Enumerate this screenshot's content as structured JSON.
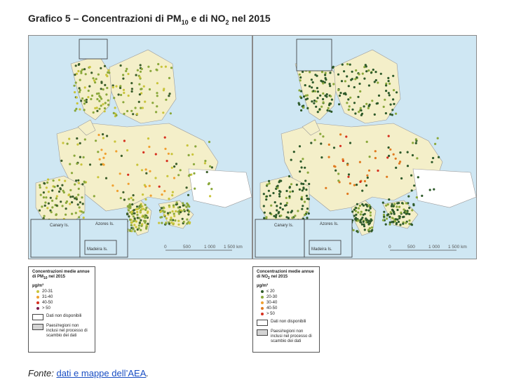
{
  "title": {
    "prefix": "Grafico 5 – Concentrazioni di PM",
    "pm_sub": "10",
    "mid": " e di NO",
    "no_sub": "2",
    "suffix": " nel 2015"
  },
  "maps": [
    {
      "inset_labels": [
        "Canary Is.",
        "Azores Is.",
        "Madeira Is."
      ],
      "scale": [
        "0",
        "500",
        "1 000",
        "1 500 km"
      ],
      "palette": [
        "#8aa83b",
        "#c9c43a",
        "#f0a030",
        "#d6301f",
        "#3b5e2a"
      ]
    },
    {
      "inset_labels": [
        "Canary Is.",
        "Azores Is.",
        "Madeira Is."
      ],
      "scale": [
        "0",
        "500",
        "1 000",
        "1 500 km"
      ],
      "palette": [
        "#2e5a2a",
        "#8aa83b",
        "#f0a030",
        "#e07a20",
        "#d6301f"
      ]
    }
  ],
  "legend_pm": {
    "title": "Concentrazioni medie annue di PM",
    "title_sub": "10",
    "title_suffix": " nel 2015",
    "unit": "µg/m³",
    "items": [
      {
        "label": "20-31",
        "color": "#c9c43a"
      },
      {
        "label": "31-40",
        "color": "#f0a030"
      },
      {
        "label": "40-50",
        "color": "#d6301f"
      },
      {
        "label": "> 50",
        "color": "#7a1a4a"
      }
    ],
    "no_data": "Dati non disponibili",
    "excluded": "Paesi/regioni non inclusi nel processo di scambio dei dati"
  },
  "legend_no2": {
    "title": "Concentrazioni medie annue di NO",
    "title_sub": "2",
    "title_suffix": " nel 2015",
    "unit": "µg/m³",
    "items": [
      {
        "label": "≤ 20",
        "color": "#2e5a2a"
      },
      {
        "label": "20-30",
        "color": "#8aa83b"
      },
      {
        "label": "30-40",
        "color": "#f0a030"
      },
      {
        "label": "40-50",
        "color": "#e07a20"
      },
      {
        "label": "> 50",
        "color": "#d6301f"
      }
    ],
    "no_data": "Dati non disponibili",
    "excluded": "Paesi/regioni non inclusi nel processo di scambio dei dati"
  },
  "source": {
    "label": "Fonte: ",
    "link": "dati e mappe dell’AEA",
    "end": "."
  }
}
